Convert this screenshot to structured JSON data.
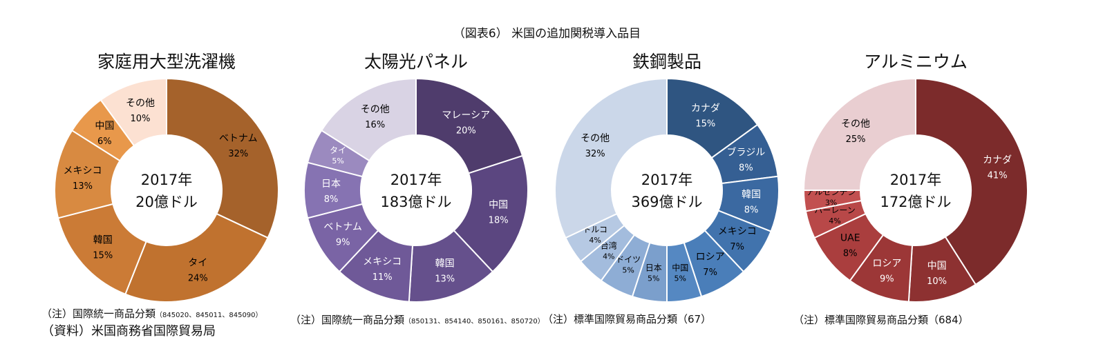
{
  "figure_title": "（図表6） 米国の追加関税導入品目",
  "chart_data": [
    {
      "type": "pie",
      "title": "家庭用大型洗濯機",
      "center_lines": [
        "2017年",
        "20億ドル"
      ],
      "categories": [
        "ベトナム",
        "タイ",
        "韓国",
        "メキシコ",
        "中国",
        "その他"
      ],
      "values": [
        32,
        24,
        15,
        13,
        6,
        10
      ],
      "colors": [
        "#a5622b",
        "#c0722f",
        "#cb7b36",
        "#d88a41",
        "#e8984b",
        "#fce1d2"
      ],
      "label_colors": [
        "#000",
        "#000",
        "#000",
        "#000",
        "#000",
        "#000"
      ],
      "unit": "%"
    },
    {
      "type": "pie",
      "title": "太陽光パネル",
      "center_lines": [
        "2017年",
        "183億ドル"
      ],
      "categories": [
        "マレーシア",
        "中国",
        "韓国",
        "メキシコ",
        "ベトナム",
        "日本",
        "タイ",
        "その他"
      ],
      "values": [
        20,
        18,
        13,
        11,
        9,
        8,
        5,
        16
      ],
      "colors": [
        "#4f3c6c",
        "#5b4680",
        "#65508c",
        "#6f5998",
        "#7a64a5",
        "#8673b2",
        "#9b8abf",
        "#d9d3e4"
      ],
      "label_colors": [
        "#fff",
        "#fff",
        "#fff",
        "#fff",
        "#fff",
        "#fff",
        "#fff",
        "#000"
      ],
      "unit": "%"
    },
    {
      "type": "pie",
      "title": "鉄鋼製品",
      "center_lines": [
        "2017年",
        "369億ドル"
      ],
      "categories": [
        "カナダ",
        "ブラジル",
        "韓国",
        "メキシコ",
        "ロシア",
        "中国",
        "日本",
        "ドイツ",
        "台湾",
        "トルコ",
        "その他"
      ],
      "values": [
        15,
        8,
        8,
        7,
        7,
        5,
        5,
        5,
        4,
        4,
        32
      ],
      "colors": [
        "#2f5581",
        "#355f93",
        "#3b69a1",
        "#4173ad",
        "#4a7eb9",
        "#5588c2",
        "#7b9fcc",
        "#8eadd5",
        "#a3bcdd",
        "#b6c9e3",
        "#cbd7e9"
      ],
      "label_colors": [
        "#fff",
        "#fff",
        "#fff",
        "#000",
        "#000",
        "#000",
        "#000",
        "#000",
        "#000",
        "#000",
        "#000"
      ],
      "unit": "%"
    },
    {
      "type": "pie",
      "title": "アルミニウム",
      "center_lines": [
        "2017年",
        "172億ドル"
      ],
      "categories": [
        "カナダ",
        "中国",
        "ロシア",
        "UAE",
        "バーレーン",
        "アルゼンチン",
        "その他"
      ],
      "values": [
        41,
        10,
        9,
        8,
        4,
        3,
        25
      ],
      "colors": [
        "#7c2b2b",
        "#8d3131",
        "#9c3737",
        "#aa3e3e",
        "#b84848",
        "#c25050",
        "#e9ced1"
      ],
      "label_colors": [
        "#fff",
        "#fff",
        "#fff",
        "#000",
        "#000",
        "#000",
        "#000"
      ],
      "unit": "%"
    }
  ],
  "notes": {
    "chart1_note_main": "（注）国際統一商品分類",
    "chart1_note_codes": "（845020、845011、845090）",
    "chart1_source": "（資料）米国商務省国際貿易局",
    "chart2_note_main": "（注）国際統一商品分類",
    "chart2_note_codes": "（850131、854140、850161、850720）",
    "chart3_note": "（注）標準国際貿易商品分類（67）",
    "chart4_note": "（注）標準国際貿易商品分類（684）"
  }
}
